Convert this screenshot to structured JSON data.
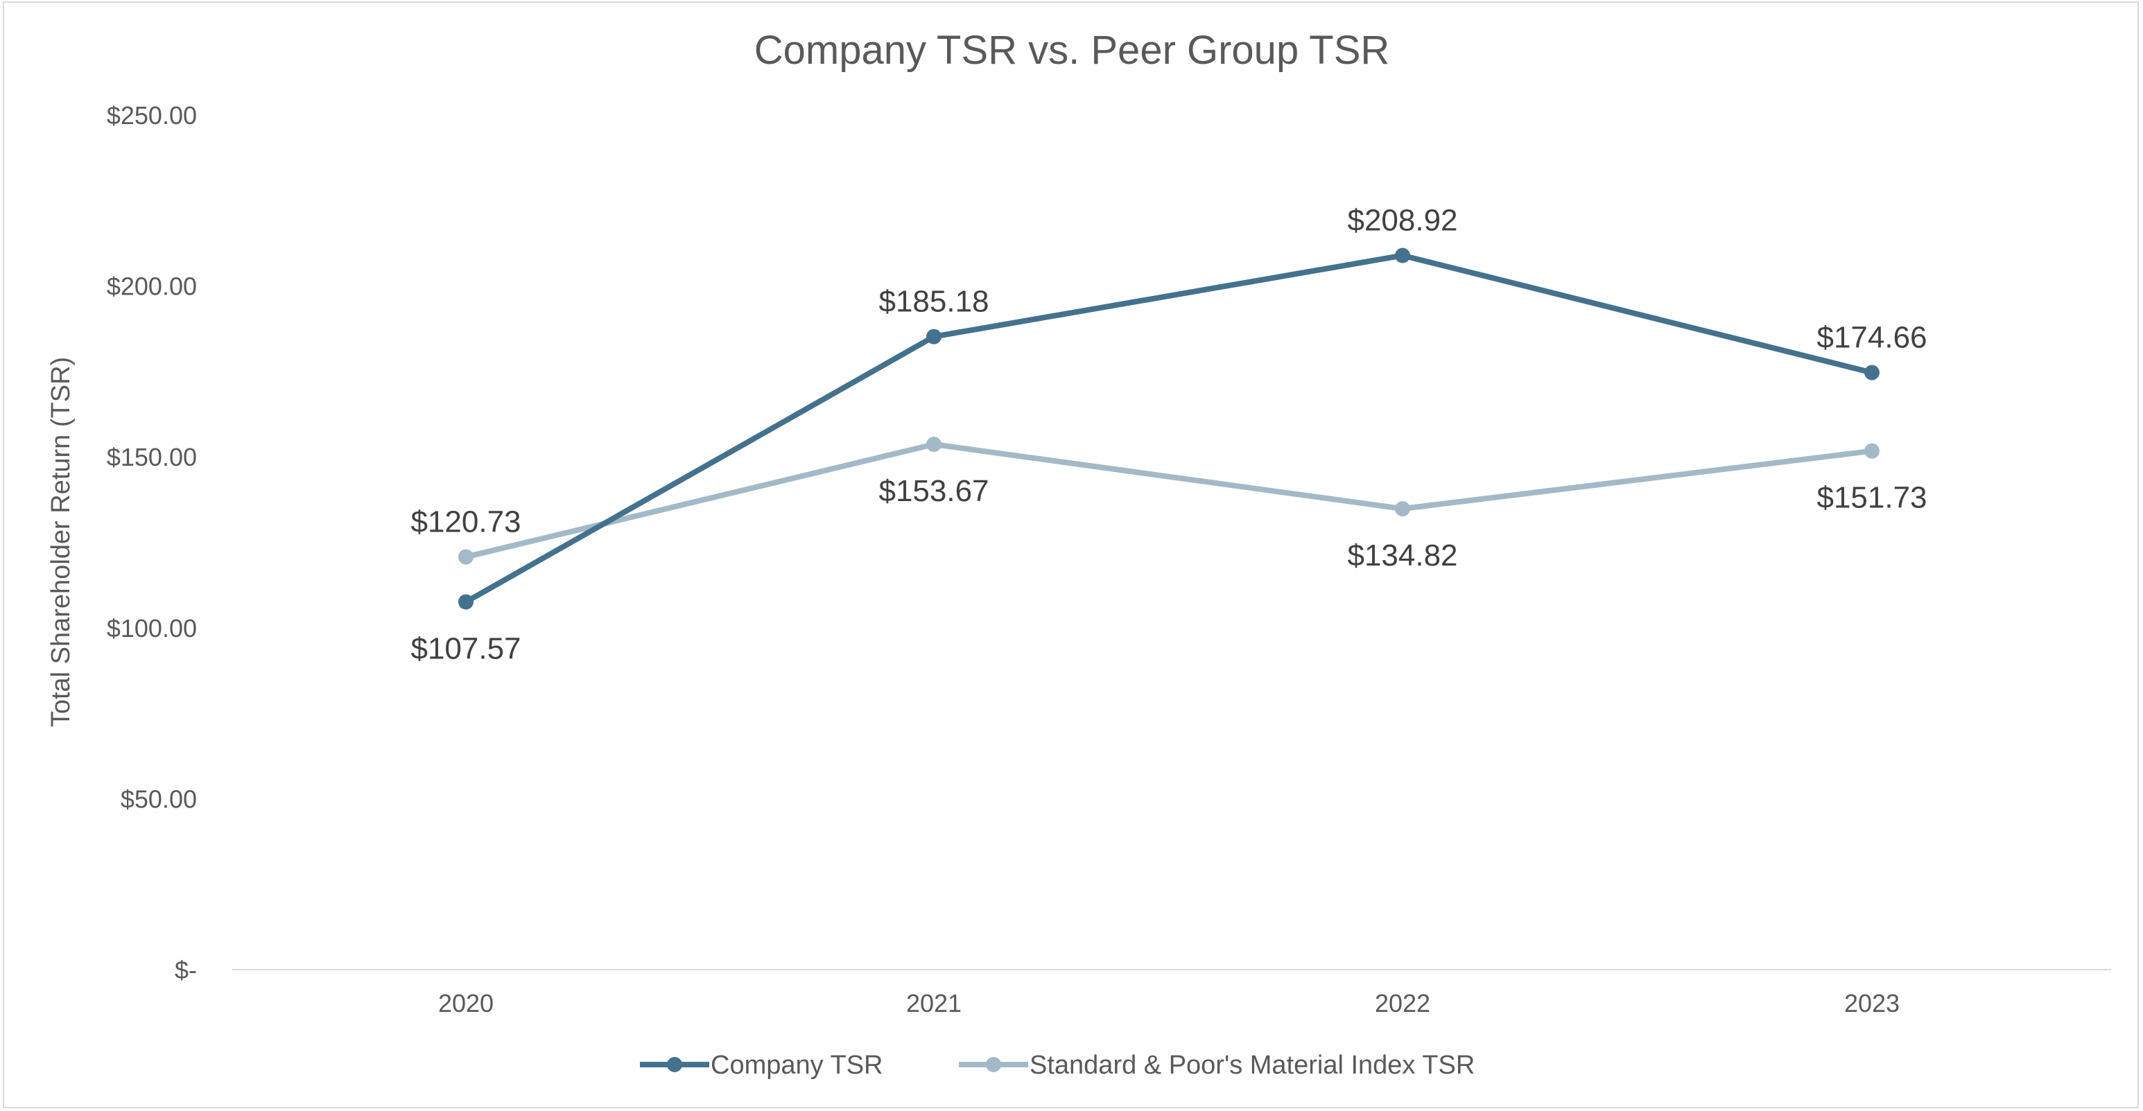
{
  "chart_data": {
    "type": "line",
    "title": "Company TSR vs. Peer Group TSR",
    "xlabel": "",
    "ylabel": "Total Shareholder Return (TSR)",
    "categories": [
      "2020",
      "2021",
      "2022",
      "2023"
    ],
    "ylim": [
      0,
      250
    ],
    "yticks": [
      0,
      50,
      100,
      150,
      200,
      250
    ],
    "ytick_labels": [
      "$-",
      "$50.00",
      "$100.00",
      "$150.00",
      "$200.00",
      "$250.00"
    ],
    "grid": false,
    "legend": "bottom",
    "series": [
      {
        "name": "Company TSR",
        "color": "#44718e",
        "values": [
          107.57,
          185.18,
          208.92,
          174.66
        ],
        "labels": [
          "$107.57",
          "$185.18",
          "$208.92",
          "$174.66"
        ],
        "label_pos": [
          "below",
          "above",
          "above",
          "above"
        ]
      },
      {
        "name": "Standard & Poor's Material Index TSR",
        "color": "#a3b9c7",
        "values": [
          120.73,
          153.67,
          134.82,
          151.73
        ],
        "labels": [
          "$120.73",
          "$153.67",
          "$134.82",
          "$151.73"
        ],
        "label_pos": [
          "above",
          "below",
          "below",
          "below"
        ]
      }
    ]
  }
}
